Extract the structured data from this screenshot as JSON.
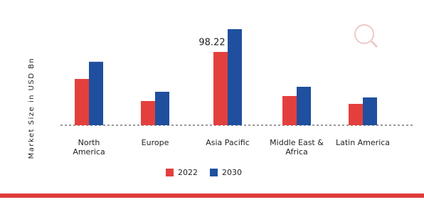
{
  "chart_data": {
    "type": "bar",
    "y_axis_label": "Market Size in USD Bn",
    "categories": [
      "North America",
      "Europe",
      "Asia Pacific",
      "Middle East & Africa",
      "Latin America"
    ],
    "series": [
      {
        "name": "2022",
        "color": "#e3403d",
        "values": [
          62,
          32.4,
          98.22,
          39.1,
          28.6
        ],
        "value_labels": [
          null,
          null,
          "98.22",
          null,
          null
        ]
      },
      {
        "name": "2030",
        "color": "#1f4f9e",
        "values": [
          85,
          44.8,
          128.7,
          51.5,
          37.2
        ]
      }
    ]
  }
}
